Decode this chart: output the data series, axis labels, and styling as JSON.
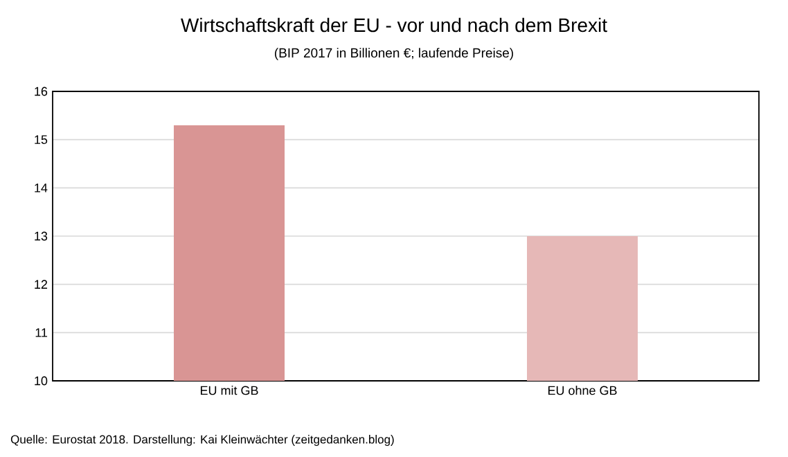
{
  "chart_data": {
    "type": "bar",
    "title": "Wirtschaftskraft der EU - vor und nach dem Brexit",
    "subtitle": "(BIP 2017 in Billionen €; laufende Preise)",
    "categories": [
      "EU mit GB",
      "EU ohne GB"
    ],
    "values": [
      15.3,
      13.0
    ],
    "colors": [
      "#d99594",
      "#e6b8b7"
    ],
    "ylim": [
      10,
      16
    ],
    "yticks": [
      10,
      11,
      12,
      13,
      14,
      15,
      16
    ],
    "grid": "y",
    "annotations": [
      "Quelle: Eurostat 2018. Darstellung: Kai Kleinwächter (zeitgedanken.blog)"
    ]
  }
}
